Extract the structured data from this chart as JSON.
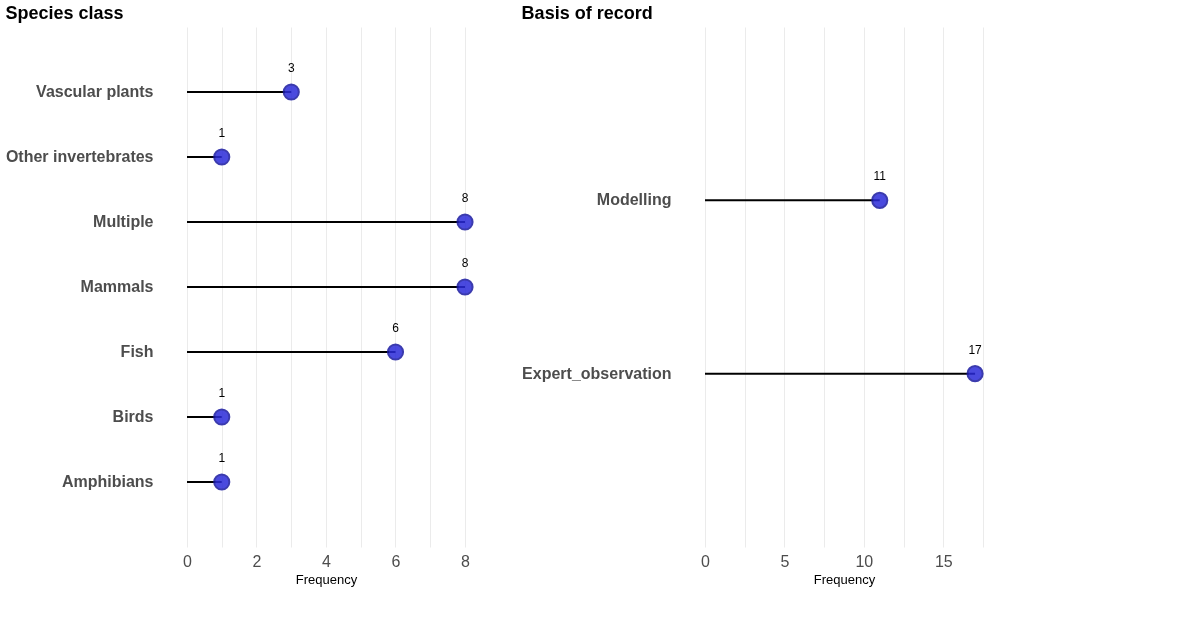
{
  "chart_data": [
    {
      "type": "lollipop",
      "title": "Species class",
      "xlabel": "Frequency",
      "orientation": "horizontal",
      "categories": [
        "Vascular plants",
        "Other invertebrates",
        "Multiple",
        "Mammals",
        "Fish",
        "Birds",
        "Amphibians"
      ],
      "values": [
        3,
        1,
        8,
        8,
        6,
        1,
        1
      ],
      "color": "#2b2bd9",
      "marker": "circle",
      "data_labels": true,
      "grid": "x",
      "xlim": [
        0,
        8
      ],
      "xticks": [
        0,
        {
          "value": 1,
          "label": null
        },
        2,
        {
          "value": 3,
          "label": null
        },
        4,
        {
          "value": 5,
          "label": null
        },
        6,
        {
          "value": 7,
          "label": null
        },
        8
      ]
    },
    {
      "type": "lollipop",
      "title": "Basis of record",
      "xlabel": "Frequency",
      "orientation": "horizontal",
      "categories": [
        "Modelling",
        "Expert_observation"
      ],
      "values": [
        11,
        17
      ],
      "color": "#2b2bd9",
      "marker": "circle",
      "data_labels": true,
      "grid": "x",
      "xlim": [
        0,
        17.5
      ],
      "xticks": [
        0,
        {
          "value": 2.5,
          "label": null
        },
        5,
        {
          "value": 7.5,
          "label": null
        },
        10,
        {
          "value": 12.5,
          "label": null
        },
        15,
        {
          "value": 17.5,
          "label": null
        }
      ]
    }
  ]
}
